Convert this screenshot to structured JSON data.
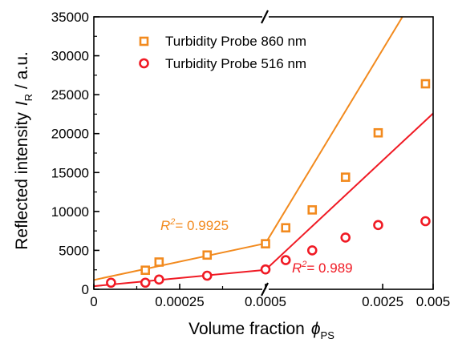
{
  "chart_data": {
    "type": "scatter",
    "xlabel": "Volume fraction",
    "xlabel_symbol": "ϕ",
    "xlabel_subscript": "PS",
    "ylabel": "Reflected intensity",
    "ylabel_symbol": "I",
    "ylabel_subscript": "R",
    "ylabel_unit": "/ a.u.",
    "x_axis_break": true,
    "x_segments": [
      {
        "range": [
          0,
          0.0005
        ]
      },
      {
        "range": [
          0.0005,
          0.005
        ]
      }
    ],
    "ylim": [
      0,
      35000
    ],
    "x_tick_labels": [
      "0",
      "0.00025",
      "0.0005",
      "0.0025",
      "0.005"
    ],
    "y_tick_labels": [
      "0",
      "5000",
      "10000",
      "15000",
      "20000",
      "25000",
      "30000",
      "35000"
    ],
    "legend_placement": "top-left",
    "series": [
      {
        "name": "Turbidity Probe 860 nm",
        "marker": "square",
        "color": "#f28a1e",
        "points": [
          {
            "x": 0.00015,
            "y": 2450
          },
          {
            "x": 0.00019,
            "y": 3500
          },
          {
            "x": 0.00033,
            "y": 4400
          },
          {
            "x": 0.0005,
            "y": 5850
          },
          {
            "x": 0.00066,
            "y": 7900
          },
          {
            "x": 0.00095,
            "y": 10200
          },
          {
            "x": 0.0015,
            "y": 14400
          },
          {
            "x": 0.00235,
            "y": 20100
          },
          {
            "x": 0.0045,
            "y": 26400
          }
        ],
        "fit_segments": [
          {
            "x": [
              0,
              0.0005
            ],
            "y": [
              1200,
              5900
            ]
          },
          {
            "x": [
              0.0005,
              0.00328
            ],
            "y": [
              5900,
              35000
            ]
          }
        ],
        "annotation": "= 0.9925"
      },
      {
        "name": "Turbidity Probe 516 nm",
        "marker": "circle",
        "color": "#f01a24",
        "points": [
          {
            "x": 5e-05,
            "y": 850
          },
          {
            "x": 0.00015,
            "y": 850
          },
          {
            "x": 0.00019,
            "y": 1250
          },
          {
            "x": 0.00033,
            "y": 1750
          },
          {
            "x": 0.0005,
            "y": 2550
          },
          {
            "x": 0.00066,
            "y": 3750
          },
          {
            "x": 0.00095,
            "y": 5000
          },
          {
            "x": 0.0015,
            "y": 6650
          },
          {
            "x": 0.00235,
            "y": 8250
          },
          {
            "x": 0.0045,
            "y": 8750
          }
        ],
        "fit_segments": [
          {
            "x": [
              0,
              0.0005
            ],
            "y": [
              400,
              2500
            ]
          },
          {
            "x": [
              0.0005,
              0.005
            ],
            "y": [
              2500,
              22600
            ]
          }
        ],
        "annotation": "= 0.989"
      }
    ],
    "annotation_label": "R",
    "annotation_superscript": "2"
  }
}
